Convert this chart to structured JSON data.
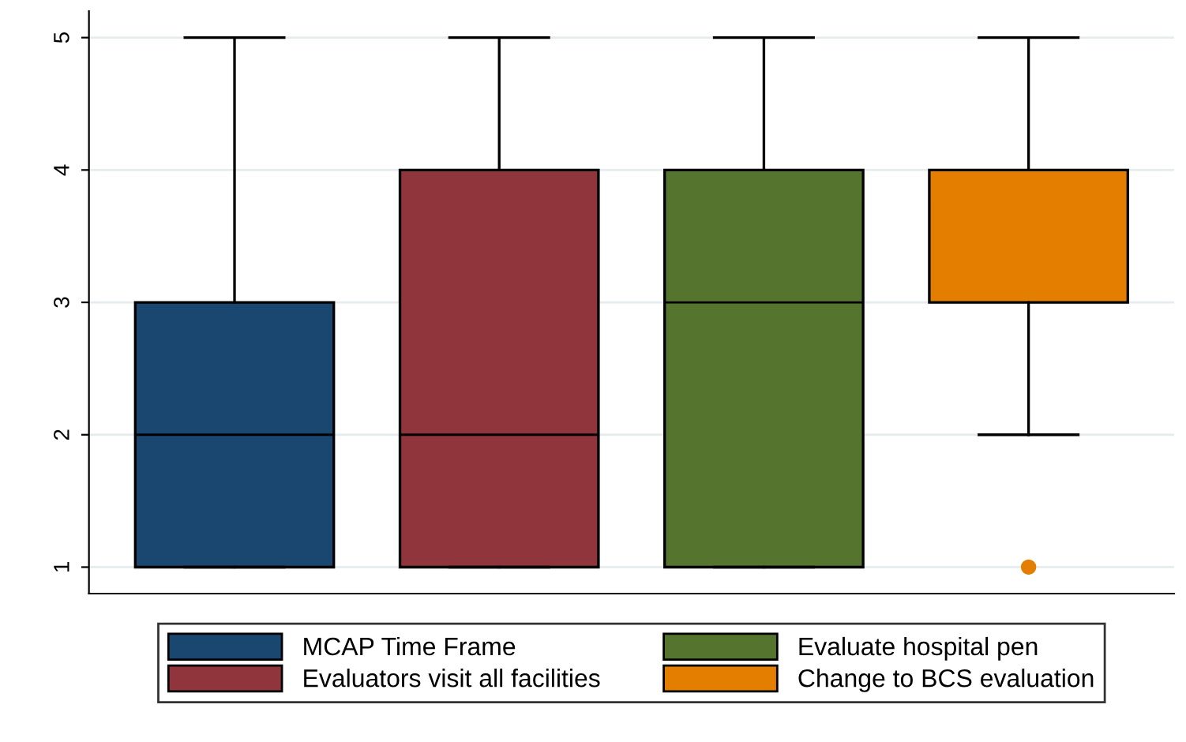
{
  "chart_data": {
    "type": "box",
    "categories": [
      null,
      null,
      null,
      null
    ],
    "series": [
      {
        "name": "MCAP Time Frame",
        "color": "#1a476f",
        "boxes": [
          {
            "low": 1,
            "q1": 1,
            "median": 2,
            "q3": 3,
            "high": 5
          },
          null,
          null,
          null
        ]
      },
      {
        "name": "Evaluators visit all facilities",
        "color": "#90353b",
        "boxes": [
          null,
          {
            "low": 1,
            "q1": 1,
            "median": 2,
            "q3": 4,
            "high": 5
          },
          null,
          null
        ]
      },
      {
        "name": "Evaluate hospital pen",
        "color": "#55752f",
        "boxes": [
          null,
          null,
          {
            "low": 1,
            "q1": 1,
            "median": 3,
            "q3": 4,
            "high": 5
          },
          null
        ]
      },
      {
        "name": "Change to BCS evaluation",
        "color": "#e37e00",
        "boxes": [
          null,
          null,
          null,
          {
            "low": 2,
            "q1": 3,
            "median": 4,
            "q3": 4,
            "high": 5,
            "outliers": [
              1
            ]
          }
        ]
      }
    ],
    "ylim": [
      0.8,
      5.2
    ],
    "yticks": [
      1,
      2,
      3,
      4,
      5
    ],
    "grid": "y",
    "legend": "bottom",
    "tick_labels": "y"
  }
}
